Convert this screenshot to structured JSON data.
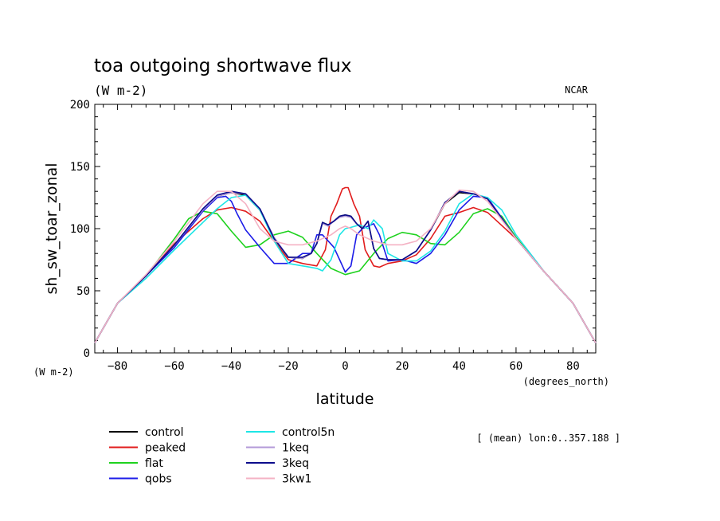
{
  "chart_data": {
    "type": "line",
    "title": "toa outgoing shortwave flux",
    "subtitle": "(W m-2)",
    "source": "NCAR",
    "ylabel": "sh_sw_toar_zonal",
    "xlabel": "latitude",
    "y_units": "(W m-2)",
    "x_units": "(degrees_north)",
    "note": "[ (mean) lon:0..357.188 ]",
    "xlim": [
      -88,
      88
    ],
    "ylim": [
      0,
      200
    ],
    "x_ticks": [
      -80,
      -60,
      -40,
      -20,
      0,
      20,
      40,
      60,
      80
    ],
    "x_tick_labels": [
      "−80",
      "−60",
      "−40",
      "−20",
      "0",
      "20",
      "40",
      "60",
      "80"
    ],
    "y_ticks": [
      0,
      50,
      100,
      150,
      200
    ],
    "y_tick_labels": [
      "0",
      "50",
      "100",
      "150",
      "200"
    ],
    "grid": false,
    "legend_position": "bottom-left",
    "series": [
      {
        "name": "control",
        "color": "#000000",
        "x": [
          -88,
          -80,
          -70,
          -60,
          -50,
          -45,
          -40,
          -35,
          -30,
          -25,
          -20,
          -15,
          -12,
          -10,
          -8,
          -6,
          -4,
          -2,
          0,
          2,
          4,
          6,
          8,
          10,
          12,
          15,
          20,
          25,
          30,
          35,
          40,
          45,
          50,
          60,
          70,
          80,
          88
        ],
        "y": [
          8,
          40,
          62,
          87,
          115,
          126,
          129,
          127,
          115,
          92,
          77,
          76,
          80,
          88,
          105,
          103,
          106,
          110,
          111,
          110,
          104,
          100,
          106,
          84,
          76,
          75,
          75,
          82,
          99,
          120,
          129,
          128,
          124,
          92,
          65,
          40,
          8
        ]
      },
      {
        "name": "peaked",
        "color": "#e11c1c",
        "x": [
          -88,
          -80,
          -70,
          -60,
          -50,
          -45,
          -40,
          -35,
          -30,
          -25,
          -20,
          -15,
          -10,
          -7,
          -5,
          -3,
          -1,
          0,
          1,
          3,
          5,
          7,
          10,
          12,
          15,
          20,
          25,
          30,
          35,
          40,
          45,
          50,
          60,
          70,
          80,
          88
        ],
        "y": [
          8,
          40,
          62,
          88,
          108,
          115,
          117,
          114,
          106,
          90,
          75,
          72,
          70,
          83,
          110,
          120,
          132,
          133,
          133,
          120,
          110,
          83,
          70,
          69,
          72,
          74,
          79,
          92,
          110,
          113,
          117,
          113,
          92,
          65,
          40,
          8
        ]
      },
      {
        "name": "flat",
        "color": "#1ed21e",
        "x": [
          -88,
          -80,
          -70,
          -60,
          -55,
          -50,
          -45,
          -40,
          -35,
          -30,
          -25,
          -20,
          -15,
          -10,
          -5,
          0,
          5,
          10,
          15,
          20,
          25,
          30,
          35,
          40,
          45,
          50,
          55,
          60,
          70,
          80,
          88
        ],
        "y": [
          8,
          40,
          62,
          92,
          108,
          114,
          112,
          98,
          85,
          87,
          95,
          98,
          93,
          80,
          68,
          63,
          66,
          80,
          92,
          97,
          95,
          88,
          87,
          97,
          112,
          116,
          110,
          93,
          65,
          40,
          8
        ]
      },
      {
        "name": "qobs",
        "color": "#1c1ce8",
        "x": [
          -88,
          -80,
          -70,
          -60,
          -50,
          -45,
          -42,
          -40,
          -38,
          -35,
          -30,
          -25,
          -20,
          -15,
          -12,
          -10,
          -8,
          -6,
          -4,
          -2,
          0,
          2,
          4,
          6,
          8,
          10,
          12,
          15,
          20,
          25,
          30,
          35,
          40,
          45,
          50,
          60,
          70,
          80,
          88
        ],
        "y": [
          8,
          40,
          62,
          85,
          114,
          125,
          126,
          122,
          112,
          99,
          85,
          72,
          72,
          80,
          80,
          95,
          95,
          90,
          85,
          75,
          65,
          70,
          95,
          100,
          102,
          104,
          95,
          74,
          75,
          72,
          80,
          95,
          115,
          126,
          125,
          92,
          65,
          40,
          8
        ]
      },
      {
        "name": "control5n",
        "color": "#1ee6e6",
        "x": [
          -88,
          -80,
          -70,
          -60,
          -50,
          -45,
          -40,
          -35,
          -30,
          -25,
          -20,
          -15,
          -10,
          -8,
          -5,
          -2,
          0,
          2,
          5,
          8,
          10,
          13,
          15,
          20,
          25,
          30,
          35,
          40,
          45,
          50,
          55,
          60,
          70,
          80,
          88
        ],
        "y": [
          8,
          40,
          60,
          83,
          105,
          116,
          125,
          127,
          115,
          90,
          72,
          70,
          68,
          66,
          75,
          95,
          100,
          101,
          103,
          100,
          107,
          100,
          80,
          74,
          74,
          82,
          98,
          120,
          128,
          125,
          115,
          95,
          65,
          40,
          8
        ]
      },
      {
        "name": "1keq",
        "color": "#b39ad8",
        "x": [
          -88,
          -80,
          -70,
          -60,
          -50,
          -45,
          -40,
          -35,
          -30,
          -25,
          -20,
          -15,
          -12,
          -10,
          -8,
          -6,
          -4,
          -2,
          0,
          2,
          4,
          6,
          8,
          10,
          12,
          15,
          20,
          25,
          30,
          35,
          40,
          45,
          50,
          60,
          70,
          80,
          88
        ],
        "y": [
          8,
          40,
          62,
          87,
          115,
          126,
          129,
          128,
          116,
          93,
          77,
          76,
          80,
          88,
          104,
          102,
          106,
          109,
          110,
          109,
          104,
          100,
          106,
          84,
          76,
          75,
          75,
          82,
          99,
          121,
          130,
          128,
          124,
          92,
          65,
          40,
          8
        ]
      },
      {
        "name": "3keq",
        "color": "#0c0c8c",
        "x": [
          -88,
          -80,
          -70,
          -60,
          -50,
          -45,
          -40,
          -35,
          -30,
          -25,
          -20,
          -15,
          -12,
          -10,
          -8,
          -6,
          -4,
          -2,
          0,
          2,
          4,
          6,
          8,
          10,
          12,
          15,
          20,
          25,
          30,
          35,
          40,
          45,
          50,
          60,
          70,
          80,
          88
        ],
        "y": [
          8,
          40,
          62,
          87,
          116,
          127,
          130,
          128,
          116,
          92,
          77,
          77,
          80,
          88,
          105,
          103,
          106,
          110,
          111,
          110,
          104,
          100,
          106,
          84,
          76,
          75,
          75,
          82,
          99,
          121,
          130,
          128,
          124,
          92,
          65,
          40,
          8
        ]
      },
      {
        "name": "3kw1",
        "color": "#f4b2c4",
        "x": [
          -88,
          -80,
          -70,
          -60,
          -50,
          -45,
          -40,
          -35,
          -30,
          -25,
          -20,
          -15,
          -10,
          -5,
          -2,
          0,
          2,
          5,
          10,
          15,
          20,
          25,
          30,
          35,
          40,
          45,
          50,
          60,
          70,
          80,
          88
        ],
        "y": [
          8,
          40,
          63,
          90,
          120,
          130,
          130,
          120,
          100,
          90,
          87,
          87,
          90,
          95,
          100,
          102,
          100,
          95,
          90,
          87,
          87,
          90,
          100,
          120,
          131,
          130,
          122,
          92,
          65,
          40,
          8
        ]
      }
    ]
  }
}
